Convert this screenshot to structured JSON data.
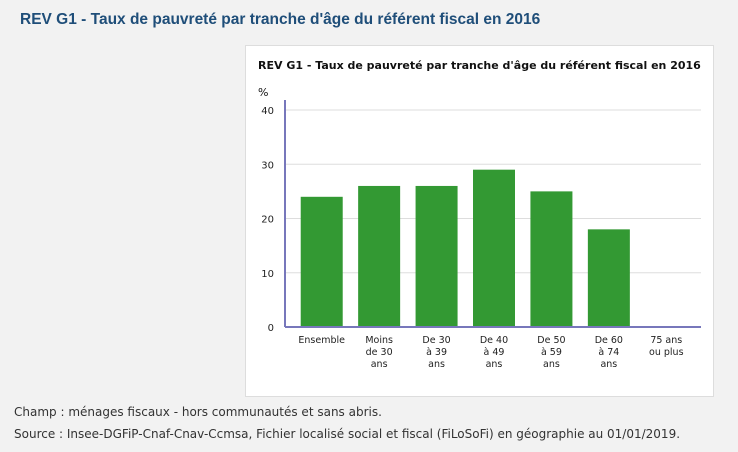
{
  "page_title": "REV G1 - Taux de pauvreté par tranche d'âge du référent fiscal en 2016",
  "chart_data": {
    "type": "bar",
    "title": "REV G1 - Taux de pauvreté par tranche d'âge du référent fiscal en 2016",
    "ylabel": "%",
    "ylim": [
      0,
      40
    ],
    "yticks": [
      "0",
      "10",
      "20",
      "30",
      "40"
    ],
    "grid": true,
    "categories": [
      [
        "Ensemble"
      ],
      [
        "Moins",
        "de 30",
        "ans"
      ],
      [
        "De 30",
        "à 39",
        "ans"
      ],
      [
        "De 40",
        "à 49",
        "ans"
      ],
      [
        "De 50",
        "à 59",
        "ans"
      ],
      [
        "De 60",
        "à 74",
        "ans"
      ],
      [
        "75 ans",
        "ou plus"
      ]
    ],
    "values": [
      24,
      26,
      26,
      29,
      25,
      18,
      null
    ],
    "colors": {
      "bar": "#339933",
      "axis": "#7777bb",
      "grid": "#dddddd"
    }
  },
  "notes": {
    "champ": "Champ : ménages fiscaux - hors communautés et sans abris.",
    "source": "Source : Insee-DGFiP-Cnaf-Cnav-Ccmsa, Fichier localisé social et fiscal (FiLoSoFi) en géographie au 01/01/2019."
  }
}
